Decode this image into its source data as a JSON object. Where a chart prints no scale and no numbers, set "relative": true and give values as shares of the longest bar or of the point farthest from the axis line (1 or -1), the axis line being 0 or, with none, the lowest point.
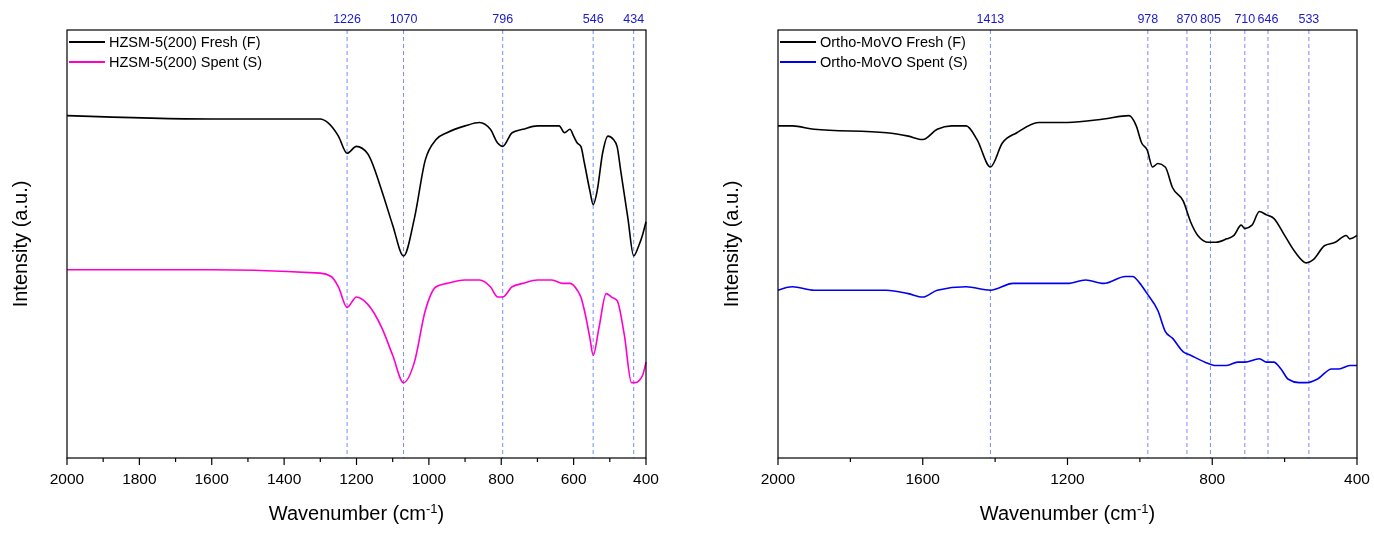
{
  "chart_data": [
    {
      "type": "line",
      "relative": true,
      "xlabel": "Wavenumber (cm$^{-1}$)",
      "ylabel": "Intensity (a.u.)",
      "xlim": [
        2000,
        400
      ],
      "xticks": [
        2000,
        {
          "value": 1900,
          "label": null
        },
        1800,
        {
          "value": 1700,
          "label": null
        },
        1600,
        {
          "value": 1500,
          "label": null
        },
        1400,
        {
          "value": 1300,
          "label": null
        },
        1200,
        {
          "value": 1100,
          "label": null
        },
        1000,
        {
          "value": 900,
          "label": null
        },
        800,
        {
          "value": 700,
          "label": null
        },
        600,
        {
          "value": 500,
          "label": null
        },
        400
      ],
      "legend": "top left",
      "line_style": "solid",
      "marker": "none",
      "series": [
        {
          "name": "HZSM-5(200) Fresh (F)",
          "color": "#000000",
          "x": [
            2000,
            1600,
            1300,
            1280,
            1250,
            1226,
            1200,
            1170,
            1130,
            1100,
            1070,
            1040,
            1010,
            980,
            950,
            900,
            860,
            830,
            810,
            796,
            770,
            740,
            700,
            670,
            640,
            625,
            610,
            600,
            590,
            580,
            570,
            555,
            546,
            535,
            520,
            505,
            490,
            480,
            470,
            450,
            434,
            420,
            410,
            400
          ],
          "values": [
            1.0,
            0.99,
            0.99,
            0.98,
            0.94,
            0.89,
            0.91,
            0.89,
            0.78,
            0.68,
            0.59,
            0.7,
            0.87,
            0.93,
            0.95,
            0.97,
            0.98,
            0.96,
            0.92,
            0.91,
            0.95,
            0.96,
            0.97,
            0.97,
            0.97,
            0.95,
            0.96,
            0.94,
            0.92,
            0.91,
            0.86,
            0.78,
            0.74,
            0.78,
            0.89,
            0.94,
            0.93,
            0.91,
            0.84,
            0.7,
            0.59,
            0.62,
            0.65,
            0.69
          ]
        },
        {
          "name": "HZSM-5(200) Spent (S)",
          "color": "#ff00cc",
          "x": [
            2000,
            1600,
            1300,
            1270,
            1250,
            1226,
            1200,
            1170,
            1130,
            1100,
            1070,
            1040,
            1010,
            980,
            950,
            900,
            860,
            830,
            810,
            796,
            770,
            740,
            700,
            660,
            630,
            610,
            590,
            580,
            570,
            555,
            546,
            530,
            510,
            495,
            480,
            460,
            440,
            430,
            410,
            400
          ],
          "values": [
            0.55,
            0.55,
            0.54,
            0.53,
            0.5,
            0.44,
            0.47,
            0.45,
            0.38,
            0.3,
            0.22,
            0.28,
            0.43,
            0.5,
            0.51,
            0.52,
            0.52,
            0.5,
            0.47,
            0.47,
            0.5,
            0.51,
            0.52,
            0.52,
            0.51,
            0.51,
            0.49,
            0.47,
            0.43,
            0.35,
            0.3,
            0.38,
            0.48,
            0.47,
            0.46,
            0.36,
            0.22,
            0.22,
            0.24,
            0.28
          ]
        }
      ],
      "ref_lines": [
        {
          "axis": "x",
          "value": 1226,
          "label": "1226",
          "color": "#6680ff",
          "line_style": "dashed"
        },
        {
          "axis": "x",
          "value": 1070,
          "label": "1070",
          "color": "#6680ff",
          "line_style": "dashed"
        },
        {
          "axis": "x",
          "value": 796,
          "label": "796",
          "color": "#6680ff",
          "line_style": "dashed"
        },
        {
          "axis": "x",
          "value": 546,
          "label": "546",
          "color": "#6680ff",
          "line_style": "dashed"
        },
        {
          "axis": "x",
          "value": 434,
          "label": "434",
          "color": "#6680ff",
          "line_style": "dashed"
        }
      ]
    },
    {
      "type": "line",
      "relative": true,
      "xlabel": "Wavenumber (cm$^{-1}$)",
      "ylabel": "Intensity (a.u.)",
      "xlim": [
        2000,
        400
      ],
      "xticks": [
        2000,
        {
          "value": 1800,
          "label": null
        },
        1600,
        {
          "value": 1400,
          "label": null
        },
        1200,
        {
          "value": 1000,
          "label": null
        },
        800,
        {
          "value": 600,
          "label": null
        },
        400
      ],
      "legend": "top left",
      "line_style": "solid",
      "marker": "none",
      "series": [
        {
          "name": "Ortho-MoVO Fresh (F)",
          "color": "#000000",
          "x": [
            2000,
            1960,
            1900,
            1700,
            1640,
            1600,
            1560,
            1520,
            1480,
            1450,
            1413,
            1380,
            1340,
            1280,
            1200,
            1100,
            1030,
            1010,
            995,
            980,
            965,
            950,
            930,
            910,
            880,
            860,
            840,
            810,
            790,
            760,
            740,
            720,
            710,
            690,
            670,
            650,
            630,
            600,
            570,
            540,
            520,
            490,
            460,
            430,
            420,
            400
          ],
          "values": [
            0.97,
            0.97,
            0.96,
            0.95,
            0.94,
            0.93,
            0.96,
            0.97,
            0.97,
            0.93,
            0.85,
            0.92,
            0.95,
            0.98,
            0.98,
            0.99,
            1.0,
            0.97,
            0.92,
            0.9,
            0.85,
            0.86,
            0.85,
            0.79,
            0.75,
            0.69,
            0.65,
            0.63,
            0.63,
            0.64,
            0.65,
            0.68,
            0.67,
            0.68,
            0.72,
            0.71,
            0.7,
            0.65,
            0.6,
            0.57,
            0.58,
            0.62,
            0.63,
            0.65,
            0.64,
            0.65
          ]
        },
        {
          "name": "Ortho-MoVO Spent (S)",
          "color": "#0000ee",
          "x": [
            2000,
            1960,
            1900,
            1700,
            1640,
            1600,
            1560,
            1480,
            1413,
            1350,
            1250,
            1200,
            1150,
            1100,
            1040,
            1020,
            1000,
            980,
            950,
            930,
            910,
            880,
            860,
            820,
            790,
            760,
            730,
            710,
            670,
            650,
            630,
            610,
            590,
            560,
            540,
            510,
            470,
            450,
            420,
            400
          ],
          "values": [
            0.49,
            0.5,
            0.49,
            0.49,
            0.48,
            0.47,
            0.49,
            0.5,
            0.49,
            0.51,
            0.51,
            0.51,
            0.52,
            0.51,
            0.53,
            0.53,
            0.51,
            0.48,
            0.43,
            0.37,
            0.35,
            0.31,
            0.3,
            0.28,
            0.27,
            0.27,
            0.28,
            0.28,
            0.29,
            0.28,
            0.28,
            0.26,
            0.23,
            0.22,
            0.22,
            0.23,
            0.26,
            0.26,
            0.27,
            0.27
          ]
        }
      ],
      "ref_lines": [
        {
          "axis": "x",
          "value": 1413,
          "label": "1413",
          "color": "#6680ff",
          "line_style": "dashed"
        },
        {
          "axis": "x",
          "value": 978,
          "label": "978",
          "color": "#6680ff",
          "line_style": "dashed"
        },
        {
          "axis": "x",
          "value": 870,
          "label": "870",
          "color": "#6680ff",
          "line_style": "dashed"
        },
        {
          "axis": "x",
          "value": 805,
          "label": "805",
          "color": "#6680ff",
          "line_style": "dashed"
        },
        {
          "axis": "x",
          "value": 710,
          "label": "710",
          "color": "#6680ff",
          "line_style": "dashed"
        },
        {
          "axis": "x",
          "value": 646,
          "label": "646",
          "color": "#6680ff",
          "line_style": "dashed"
        },
        {
          "axis": "x",
          "value": 533,
          "label": "533",
          "color": "#6680ff",
          "line_style": "dashed"
        }
      ]
    }
  ]
}
